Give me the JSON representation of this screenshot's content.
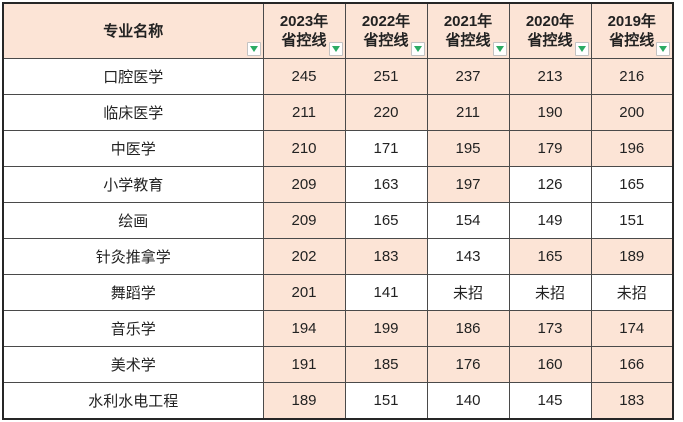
{
  "colors": {
    "header_bg": "#fce4d6",
    "highlight_bg": "#fce4d6",
    "cell_bg": "#ffffff",
    "inner_border": "#4a4a4a",
    "outer_border": "#262626",
    "text": "#222222",
    "filter_arrow_green": "#2bab63"
  },
  "table": {
    "name_header": "专业名称",
    "year_headers": [
      {
        "line1": "2023年",
        "line2": "省控线"
      },
      {
        "line1": "2022年",
        "line2": "省控线"
      },
      {
        "line1": "2021年",
        "line2": "省控线"
      },
      {
        "line1": "2020年",
        "line2": "省控线"
      },
      {
        "line1": "2019年",
        "line2": "省控线"
      }
    ],
    "rows": [
      {
        "name": "口腔医学",
        "cells": [
          {
            "text": "245",
            "highlight": true
          },
          {
            "text": "251",
            "highlight": true
          },
          {
            "text": "237",
            "highlight": true
          },
          {
            "text": "213",
            "highlight": true
          },
          {
            "text": "216",
            "highlight": true
          }
        ]
      },
      {
        "name": "临床医学",
        "cells": [
          {
            "text": "211",
            "highlight": true
          },
          {
            "text": "220",
            "highlight": true
          },
          {
            "text": "211",
            "highlight": true
          },
          {
            "text": "190",
            "highlight": true
          },
          {
            "text": "200",
            "highlight": true
          }
        ]
      },
      {
        "name": "中医学",
        "cells": [
          {
            "text": "210",
            "highlight": true
          },
          {
            "text": "171",
            "highlight": false
          },
          {
            "text": "195",
            "highlight": true
          },
          {
            "text": "179",
            "highlight": true
          },
          {
            "text": "196",
            "highlight": true
          }
        ]
      },
      {
        "name": "小学教育",
        "cells": [
          {
            "text": "209",
            "highlight": true
          },
          {
            "text": "163",
            "highlight": false
          },
          {
            "text": "197",
            "highlight": true
          },
          {
            "text": "126",
            "highlight": false
          },
          {
            "text": "165",
            "highlight": false
          }
        ]
      },
      {
        "name": "绘画",
        "cells": [
          {
            "text": "209",
            "highlight": true
          },
          {
            "text": "165",
            "highlight": false
          },
          {
            "text": "154",
            "highlight": false
          },
          {
            "text": "149",
            "highlight": false
          },
          {
            "text": "151",
            "highlight": false
          }
        ]
      },
      {
        "name": "针灸推拿学",
        "cells": [
          {
            "text": "202",
            "highlight": true
          },
          {
            "text": "183",
            "highlight": true
          },
          {
            "text": "143",
            "highlight": false
          },
          {
            "text": "165",
            "highlight": true
          },
          {
            "text": "189",
            "highlight": true
          }
        ]
      },
      {
        "name": "舞蹈学",
        "cells": [
          {
            "text": "201",
            "highlight": true
          },
          {
            "text": "141",
            "highlight": false
          },
          {
            "text": "未招",
            "highlight": false
          },
          {
            "text": "未招",
            "highlight": false
          },
          {
            "text": "未招",
            "highlight": false
          }
        ]
      },
      {
        "name": "音乐学",
        "cells": [
          {
            "text": "194",
            "highlight": true
          },
          {
            "text": "199",
            "highlight": true
          },
          {
            "text": "186",
            "highlight": true
          },
          {
            "text": "173",
            "highlight": true
          },
          {
            "text": "174",
            "highlight": true
          }
        ]
      },
      {
        "name": "美术学",
        "cells": [
          {
            "text": "191",
            "highlight": true
          },
          {
            "text": "185",
            "highlight": true
          },
          {
            "text": "176",
            "highlight": true
          },
          {
            "text": "160",
            "highlight": true
          },
          {
            "text": "166",
            "highlight": true
          }
        ]
      },
      {
        "name": "水利水电工程",
        "cells": [
          {
            "text": "189",
            "highlight": true
          },
          {
            "text": "151",
            "highlight": false
          },
          {
            "text": "140",
            "highlight": false
          },
          {
            "text": "145",
            "highlight": false
          },
          {
            "text": "183",
            "highlight": true
          }
        ]
      }
    ]
  }
}
